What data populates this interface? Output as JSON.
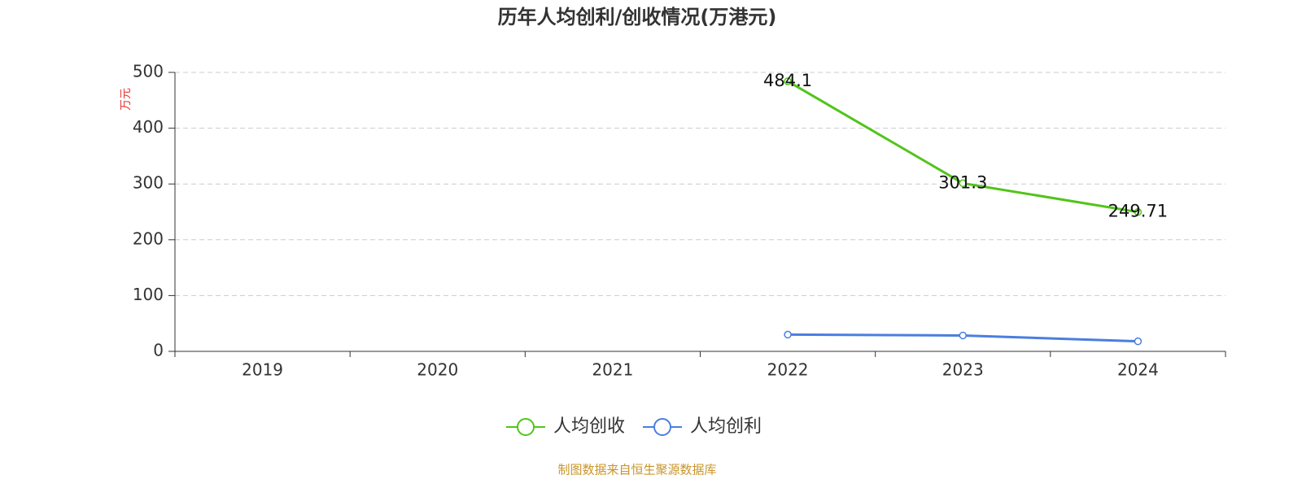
{
  "chart_data": {
    "type": "line",
    "title": "历年人均创利/创收情况(万港元)",
    "y_label": "万元",
    "categories": [
      "2019",
      "2020",
      "2021",
      "2022",
      "2023",
      "2024"
    ],
    "series": [
      {
        "name": "人均创收",
        "color": "#52c41a",
        "values": [
          null,
          null,
          null,
          484.1,
          301.3,
          249.71
        ],
        "labels": true
      },
      {
        "name": "人均创利",
        "color": "#4a7ee0",
        "values": [
          null,
          null,
          null,
          30,
          28.5,
          18
        ],
        "labels": false
      }
    ],
    "ylim": [
      0,
      500
    ],
    "yticks": [
      0,
      100,
      200,
      300,
      400,
      500
    ],
    "grid": true,
    "legend": "bottom",
    "source": "制图数据来自恒生聚源数据库"
  }
}
